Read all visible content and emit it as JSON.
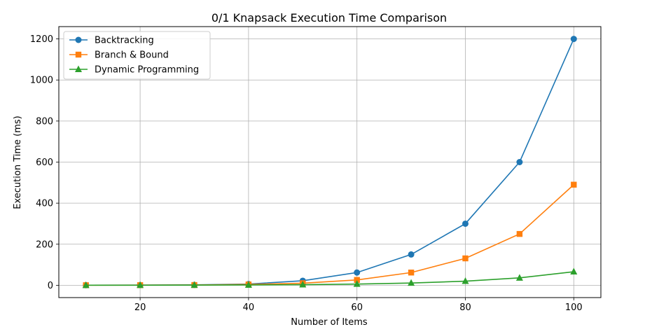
{
  "chart_data": {
    "type": "line",
    "title": "0/1 Knapsack Execution Time Comparison",
    "xlabel": "Number of Items",
    "ylabel": "Execution Time (ms)",
    "xlim": [
      5,
      105
    ],
    "ylim": [
      -60,
      1260
    ],
    "xticks": [
      20,
      40,
      60,
      80,
      100
    ],
    "yticks": [
      0,
      200,
      400,
      600,
      800,
      1000,
      1200
    ],
    "xtick_labels": [
      "20",
      "40",
      "60",
      "80",
      "100"
    ],
    "ytick_labels": [
      "0",
      "200",
      "400",
      "600",
      "800",
      "1000",
      "1200"
    ],
    "grid": true,
    "legend_position": "top-left",
    "x": [
      10,
      20,
      30,
      40,
      50,
      60,
      70,
      80,
      90,
      100
    ],
    "series": [
      {
        "name": "Backtracking",
        "color": "#1f77b4",
        "marker": "circle",
        "values": [
          0.5,
          1,
          2,
          6,
          22,
          62,
          150,
          300,
          600,
          1200
        ]
      },
      {
        "name": "Branch & Bound",
        "color": "#ff7f0e",
        "marker": "square",
        "values": [
          0.3,
          0.6,
          1.2,
          4,
          10,
          26,
          62,
          131,
          250,
          490
        ]
      },
      {
        "name": "Dynamic Programming",
        "color": "#2ca02c",
        "marker": "triangle",
        "values": [
          0.2,
          0.4,
          0.8,
          1.5,
          3,
          6,
          11,
          20,
          36,
          66
        ]
      }
    ]
  }
}
